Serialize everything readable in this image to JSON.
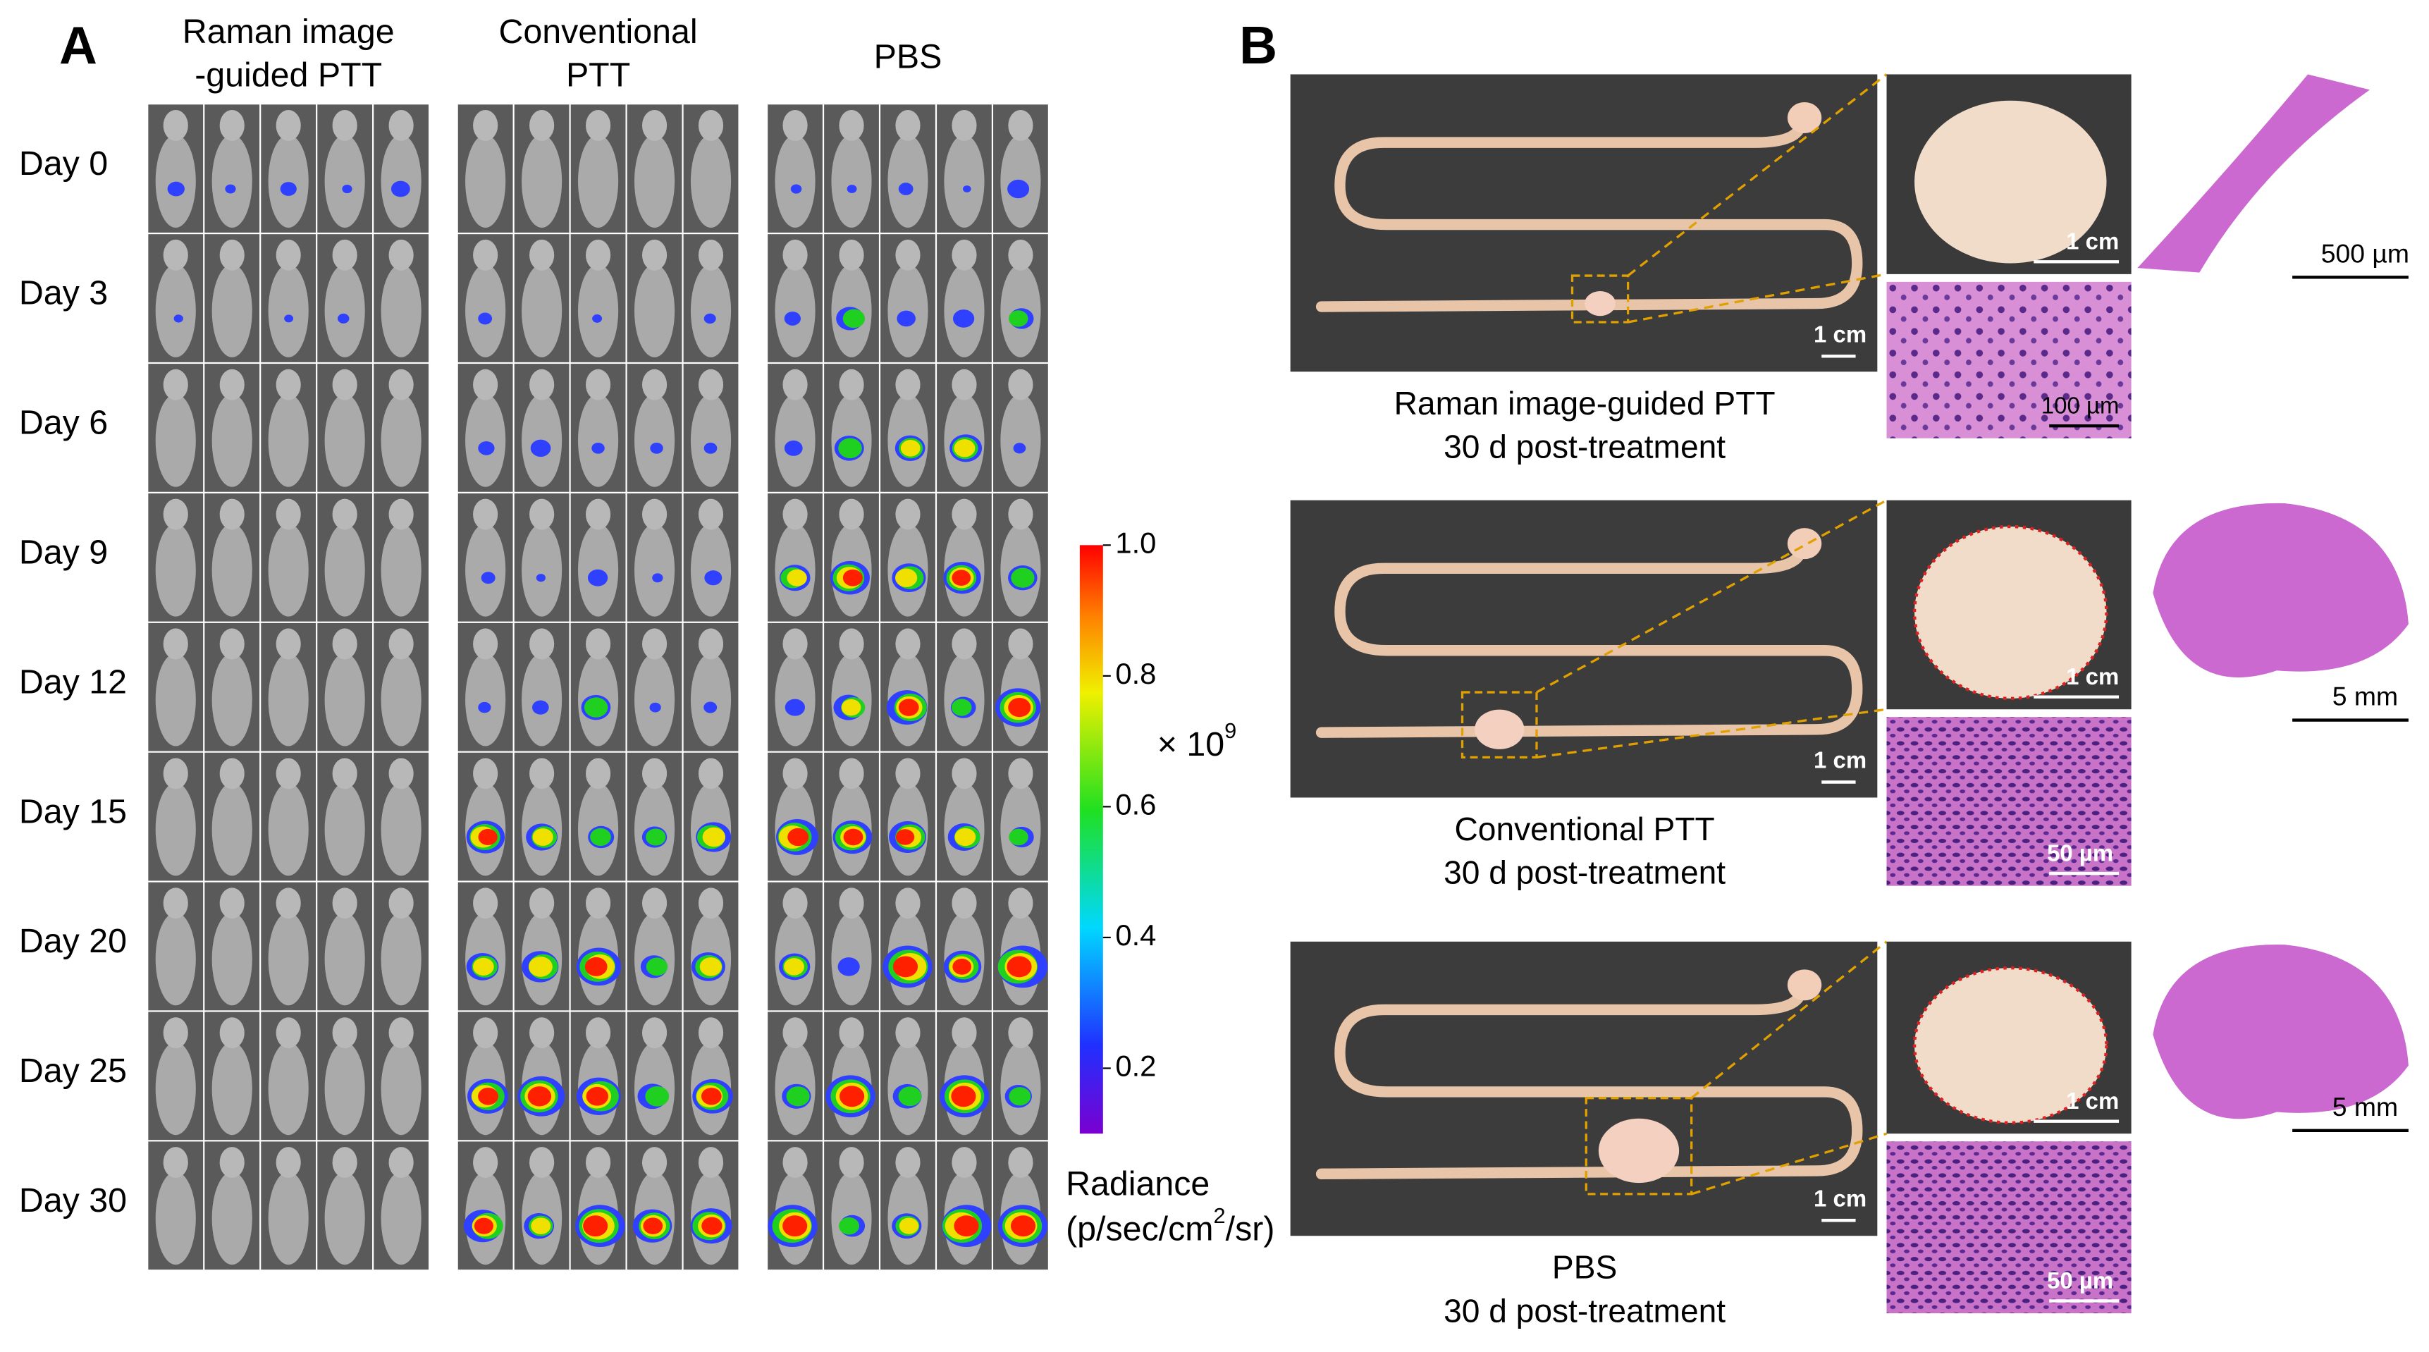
{
  "panel_a": {
    "label": "A",
    "columns": [
      [
        "Raman image",
        "-guided PTT"
      ],
      [
        "Conventional",
        "PTT"
      ],
      [
        "PBS"
      ]
    ],
    "rows": [
      "Day 0",
      "Day 3",
      "Day 6",
      "Day 9",
      "Day 12",
      "Day 15",
      "Day 20",
      "Day 25",
      "Day 30"
    ],
    "colorbar": {
      "range": [
        0.1,
        1.0
      ],
      "ticks": [
        {
          "value": 1.0,
          "label": "1.0"
        },
        {
          "value": 0.8,
          "label": "0.8"
        },
        {
          "value": 0.6,
          "label": "0.6"
        },
        {
          "value": 0.4,
          "label": "0.4"
        },
        {
          "value": 0.2,
          "label": "0.2"
        }
      ],
      "multiplier": {
        "base": "× 10",
        "exponent": "9"
      },
      "title": {
        "name": "Radiance",
        "unit_before": "(p/sec/cm",
        "unit_exponent": "2",
        "unit_after": "/sr)"
      }
    }
  },
  "panel_b": {
    "label": "B",
    "rows": [
      {
        "caption": [
          "Raman image-guided PTT",
          "30 d post-treatment"
        ],
        "scale_photo": "1 cm",
        "scale_zoom": "1 cm",
        "scale_histology": "100 µm",
        "scale_overview": "500 µm"
      },
      {
        "caption": [
          "Conventional PTT",
          "30 d post-treatment"
        ],
        "scale_photo": "1 cm",
        "scale_zoom": "1 cm",
        "scale_histology": "50 µm",
        "scale_overview": "5 mm"
      },
      {
        "caption": [
          "PBS",
          "30 d post-treatment"
        ],
        "scale_photo": "1 cm",
        "scale_zoom": "1 cm",
        "scale_histology": "50 µm",
        "scale_overview": "5 mm"
      }
    ]
  }
}
